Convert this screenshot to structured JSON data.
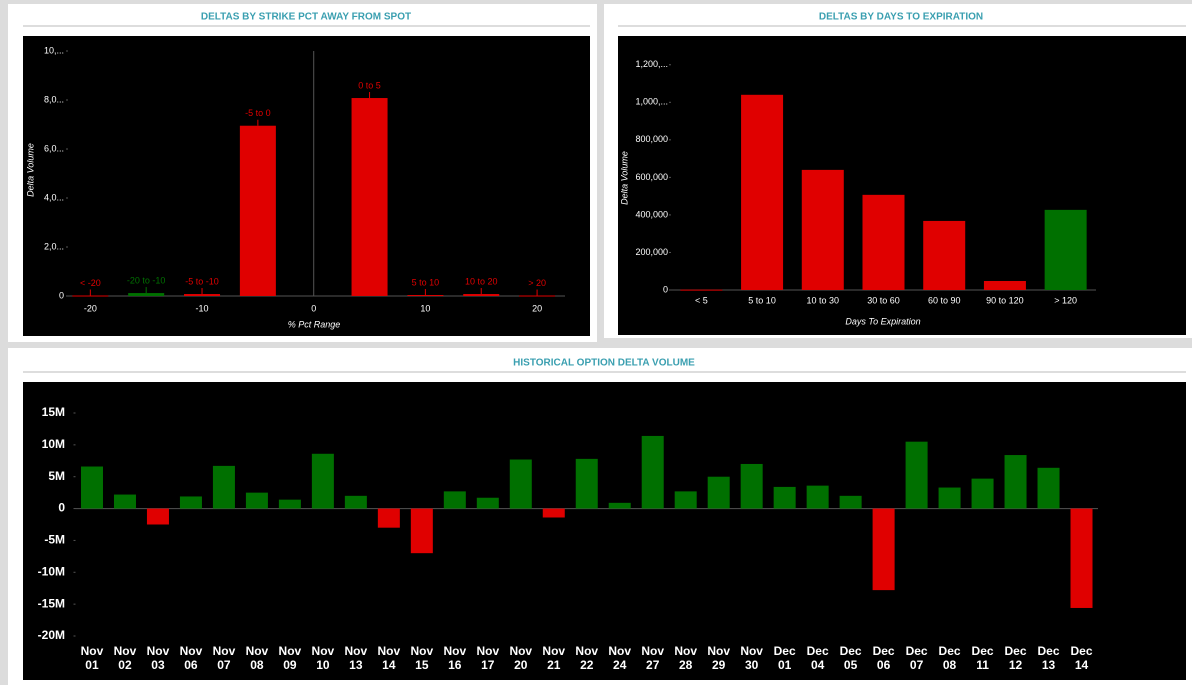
{
  "chart_data": [
    {
      "type": "bar",
      "title": "DELTAS BY STRIKE PCT AWAY FROM SPOT",
      "x_label": "% Pct Range",
      "y_label": "Delta Volume",
      "categories": [
        "< -20",
        "-20 to -10",
        "-5 to -10",
        "-5 to 0",
        "0 to 5",
        "5 to 10",
        "10 to 20",
        "> 20"
      ],
      "x": [
        -20,
        -15,
        -10,
        -5,
        5,
        10,
        15,
        20
      ],
      "values": [
        20,
        120,
        80,
        6950,
        8080,
        40,
        80,
        20
      ],
      "colors": [
        "#e00000",
        "#007000",
        "#e00000",
        "#e00000",
        "#e00000",
        "#e00000",
        "#e00000",
        "#e00000"
      ],
      "xlim": [
        -22,
        22.5
      ],
      "xticks": [
        -20,
        -10,
        0,
        10,
        20
      ],
      "ylim": [
        0,
        10000
      ],
      "yticks": [
        0,
        {
          "value": 2000,
          "label": "2,0..."
        },
        {
          "value": 4000,
          "label": "4,0..."
        },
        {
          "value": 6000,
          "label": "6,0..."
        },
        {
          "value": 8000,
          "label": "8,0..."
        },
        {
          "value": 10000,
          "label": "10,..."
        }
      ]
    },
    {
      "type": "bar",
      "title": "DELTAS BY DAYS TO EXPIRATION",
      "x_label": "Days To Expiration",
      "y_label": "Delta Volume",
      "categories": [
        "< 5",
        "5 to 10",
        "10 to 30",
        "30 to 60",
        "60 to 90",
        "90 to 120",
        "> 120"
      ],
      "values": [
        2000,
        1040000,
        640000,
        507000,
        368000,
        48000,
        427000
      ],
      "colors": [
        "#e00000",
        "#e00000",
        "#e00000",
        "#e00000",
        "#e00000",
        "#e00000",
        "#007000"
      ],
      "ylim": [
        0,
        1300000
      ],
      "yticks": [
        0,
        {
          "value": 200000,
          "label": "200,000"
        },
        {
          "value": 400000,
          "label": "400,000"
        },
        {
          "value": 600000,
          "label": "600,000"
        },
        {
          "value": 800000,
          "label": "800,000"
        },
        {
          "value": 1000000,
          "label": "1,000,..."
        },
        {
          "value": 1200000,
          "label": "1,200,..."
        }
      ]
    },
    {
      "type": "bar",
      "title": "HISTORICAL OPTION DELTA VOLUME",
      "categories": [
        "Nov 01",
        "Nov 02",
        "Nov 03",
        "Nov 06",
        "Nov 07",
        "Nov 08",
        "Nov 09",
        "Nov 10",
        "Nov 13",
        "Nov 14",
        "Nov 15",
        "Nov 16",
        "Nov 17",
        "Nov 20",
        "Nov 21",
        "Nov 22",
        "Nov 24",
        "Nov 27",
        "Nov 28",
        "Nov 29",
        "Nov 30",
        "Dec 01",
        "Dec 04",
        "Dec 05",
        "Dec 06",
        "Dec 07",
        "Dec 08",
        "Dec 11",
        "Dec 12",
        "Dec 13",
        "Dec 14"
      ],
      "values": [
        6.6,
        2.2,
        -2.5,
        1.9,
        6.7,
        2.5,
        1.4,
        8.6,
        2.0,
        -3.0,
        -7.0,
        2.7,
        1.7,
        7.7,
        -1.4,
        7.8,
        0.9,
        11.4,
        2.7,
        5.0,
        7.0,
        3.4,
        3.6,
        2.0,
        -12.8,
        10.5,
        3.3,
        4.7,
        8.4,
        6.4,
        -15.6
      ],
      "positive_color": "#007000",
      "negative_color": "#e00000",
      "ylim": [
        -20,
        15
      ],
      "yticks": [
        {
          "value": -20,
          "label": "-20M"
        },
        {
          "value": -15,
          "label": "-15M"
        },
        {
          "value": -10,
          "label": "-10M"
        },
        {
          "value": -5,
          "label": "-5M"
        },
        0,
        {
          "value": 5,
          "label": "5M"
        },
        {
          "value": 10,
          "label": "10M"
        },
        {
          "value": 15,
          "label": "15M"
        }
      ]
    }
  ]
}
